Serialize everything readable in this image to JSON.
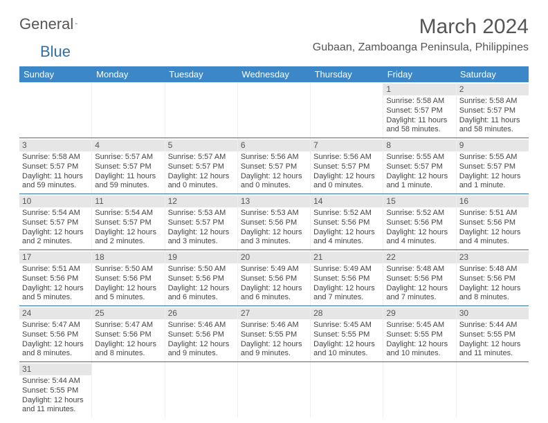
{
  "logo": {
    "text1": "General",
    "text2": "Blue"
  },
  "title": "March 2024",
  "location": "Gubaan, Zamboanga Peninsula, Philippines",
  "colors": {
    "header_bg": "#3b87c8",
    "header_text": "#ffffff",
    "daybar_bg": "#e6e6e6",
    "text": "#555555",
    "week_border": "#2f6fa8"
  },
  "day_headers": [
    "Sunday",
    "Monday",
    "Tuesday",
    "Wednesday",
    "Thursday",
    "Friday",
    "Saturday"
  ],
  "weeks": [
    [
      null,
      null,
      null,
      null,
      null,
      {
        "n": "1",
        "sr": "5:58 AM",
        "ss": "5:57 PM",
        "dl": "11 hours and 58 minutes."
      },
      {
        "n": "2",
        "sr": "5:58 AM",
        "ss": "5:57 PM",
        "dl": "11 hours and 58 minutes."
      }
    ],
    [
      {
        "n": "3",
        "sr": "5:58 AM",
        "ss": "5:57 PM",
        "dl": "11 hours and 59 minutes."
      },
      {
        "n": "4",
        "sr": "5:57 AM",
        "ss": "5:57 PM",
        "dl": "11 hours and 59 minutes."
      },
      {
        "n": "5",
        "sr": "5:57 AM",
        "ss": "5:57 PM",
        "dl": "12 hours and 0 minutes."
      },
      {
        "n": "6",
        "sr": "5:56 AM",
        "ss": "5:57 PM",
        "dl": "12 hours and 0 minutes."
      },
      {
        "n": "7",
        "sr": "5:56 AM",
        "ss": "5:57 PM",
        "dl": "12 hours and 0 minutes."
      },
      {
        "n": "8",
        "sr": "5:55 AM",
        "ss": "5:57 PM",
        "dl": "12 hours and 1 minute."
      },
      {
        "n": "9",
        "sr": "5:55 AM",
        "ss": "5:57 PM",
        "dl": "12 hours and 1 minute."
      }
    ],
    [
      {
        "n": "10",
        "sr": "5:54 AM",
        "ss": "5:57 PM",
        "dl": "12 hours and 2 minutes."
      },
      {
        "n": "11",
        "sr": "5:54 AM",
        "ss": "5:57 PM",
        "dl": "12 hours and 2 minutes."
      },
      {
        "n": "12",
        "sr": "5:53 AM",
        "ss": "5:57 PM",
        "dl": "12 hours and 3 minutes."
      },
      {
        "n": "13",
        "sr": "5:53 AM",
        "ss": "5:56 PM",
        "dl": "12 hours and 3 minutes."
      },
      {
        "n": "14",
        "sr": "5:52 AM",
        "ss": "5:56 PM",
        "dl": "12 hours and 4 minutes."
      },
      {
        "n": "15",
        "sr": "5:52 AM",
        "ss": "5:56 PM",
        "dl": "12 hours and 4 minutes."
      },
      {
        "n": "16",
        "sr": "5:51 AM",
        "ss": "5:56 PM",
        "dl": "12 hours and 4 minutes."
      }
    ],
    [
      {
        "n": "17",
        "sr": "5:51 AM",
        "ss": "5:56 PM",
        "dl": "12 hours and 5 minutes."
      },
      {
        "n": "18",
        "sr": "5:50 AM",
        "ss": "5:56 PM",
        "dl": "12 hours and 5 minutes."
      },
      {
        "n": "19",
        "sr": "5:50 AM",
        "ss": "5:56 PM",
        "dl": "12 hours and 6 minutes."
      },
      {
        "n": "20",
        "sr": "5:49 AM",
        "ss": "5:56 PM",
        "dl": "12 hours and 6 minutes."
      },
      {
        "n": "21",
        "sr": "5:49 AM",
        "ss": "5:56 PM",
        "dl": "12 hours and 7 minutes."
      },
      {
        "n": "22",
        "sr": "5:48 AM",
        "ss": "5:56 PM",
        "dl": "12 hours and 7 minutes."
      },
      {
        "n": "23",
        "sr": "5:48 AM",
        "ss": "5:56 PM",
        "dl": "12 hours and 8 minutes."
      }
    ],
    [
      {
        "n": "24",
        "sr": "5:47 AM",
        "ss": "5:56 PM",
        "dl": "12 hours and 8 minutes."
      },
      {
        "n": "25",
        "sr": "5:47 AM",
        "ss": "5:56 PM",
        "dl": "12 hours and 8 minutes."
      },
      {
        "n": "26",
        "sr": "5:46 AM",
        "ss": "5:56 PM",
        "dl": "12 hours and 9 minutes."
      },
      {
        "n": "27",
        "sr": "5:46 AM",
        "ss": "5:55 PM",
        "dl": "12 hours and 9 minutes."
      },
      {
        "n": "28",
        "sr": "5:45 AM",
        "ss": "5:55 PM",
        "dl": "12 hours and 10 minutes."
      },
      {
        "n": "29",
        "sr": "5:45 AM",
        "ss": "5:55 PM",
        "dl": "12 hours and 10 minutes."
      },
      {
        "n": "30",
        "sr": "5:44 AM",
        "ss": "5:55 PM",
        "dl": "12 hours and 11 minutes."
      }
    ],
    [
      {
        "n": "31",
        "sr": "5:44 AM",
        "ss": "5:55 PM",
        "dl": "12 hours and 11 minutes."
      },
      null,
      null,
      null,
      null,
      null,
      null
    ]
  ],
  "labels": {
    "sunrise": "Sunrise:",
    "sunset": "Sunset:",
    "daylight": "Daylight:"
  }
}
